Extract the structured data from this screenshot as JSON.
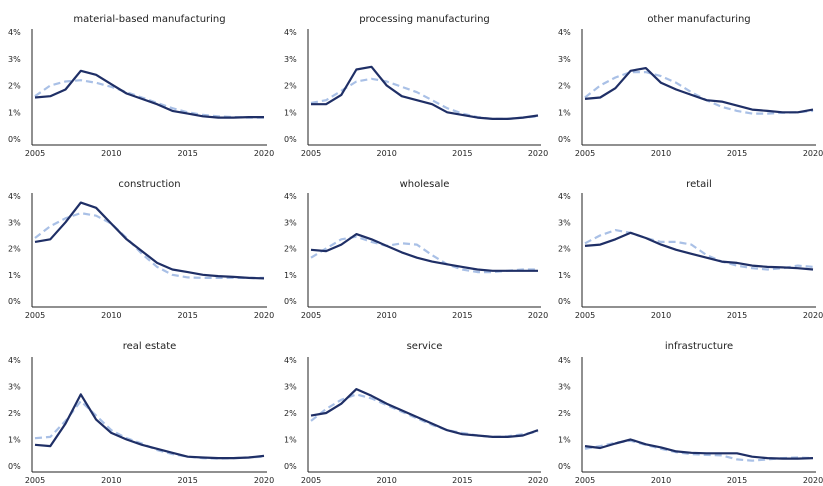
{
  "chart_data": [
    {
      "type": "line",
      "title": "material-based manufacturing",
      "x": [
        2005,
        2006,
        2007,
        2008,
        2009,
        2010,
        2011,
        2012,
        2013,
        2014,
        2015,
        2016,
        2017,
        2018,
        2019,
        2020
      ],
      "xticks": [
        "2005",
        "2010",
        "2015",
        "2020"
      ],
      "yticks": [
        "0%",
        "1%",
        "2%",
        "3%",
        "4%"
      ],
      "ylim": [
        0,
        4
      ],
      "series": [
        {
          "style": "solid",
          "color": "#1f2f66",
          "values": [
            1.55,
            1.6,
            1.85,
            2.55,
            2.4,
            2.05,
            1.7,
            1.5,
            1.3,
            1.05,
            0.95,
            0.85,
            0.8,
            0.8,
            0.82,
            0.82
          ]
        },
        {
          "style": "dashed",
          "color": "#a9c0e6",
          "values": [
            1.6,
            2.0,
            2.15,
            2.2,
            2.1,
            1.95,
            1.75,
            1.55,
            1.35,
            1.15,
            1.0,
            0.9,
            0.85,
            0.82,
            0.8,
            0.8
          ]
        }
      ]
    },
    {
      "type": "line",
      "title": "processing manufacturing",
      "x": [
        2005,
        2006,
        2007,
        2008,
        2009,
        2010,
        2011,
        2012,
        2013,
        2014,
        2015,
        2016,
        2017,
        2018,
        2019,
        2020
      ],
      "xticks": [
        "2005",
        "2010",
        "2015",
        "2020"
      ],
      "yticks": [
        "0%",
        "1%",
        "2%",
        "3%",
        "4%"
      ],
      "ylim": [
        0,
        4
      ],
      "series": [
        {
          "style": "solid",
          "color": "#1f2f66",
          "values": [
            1.3,
            1.3,
            1.65,
            2.6,
            2.7,
            2.0,
            1.6,
            1.45,
            1.3,
            1.0,
            0.9,
            0.8,
            0.75,
            0.75,
            0.8,
            0.88
          ]
        },
        {
          "style": "dashed",
          "color": "#a9c0e6",
          "values": [
            1.35,
            1.45,
            1.8,
            2.15,
            2.25,
            2.15,
            1.95,
            1.75,
            1.45,
            1.15,
            0.95,
            0.82,
            0.75,
            0.75,
            0.8,
            0.85
          ]
        }
      ]
    },
    {
      "type": "line",
      "title": "other manufacturing",
      "x": [
        2005,
        2006,
        2007,
        2008,
        2009,
        2010,
        2011,
        2012,
        2013,
        2014,
        2015,
        2016,
        2017,
        2018,
        2019,
        2020
      ],
      "xticks": [
        "2005",
        "2010",
        "2015",
        "2020"
      ],
      "yticks": [
        "0%",
        "1%",
        "2%",
        "3%",
        "4%"
      ],
      "ylim": [
        0,
        4
      ],
      "series": [
        {
          "style": "solid",
          "color": "#1f2f66",
          "values": [
            1.5,
            1.55,
            1.9,
            2.55,
            2.65,
            2.1,
            1.85,
            1.65,
            1.45,
            1.4,
            1.25,
            1.1,
            1.05,
            1.0,
            1.0,
            1.1
          ]
        },
        {
          "style": "dashed",
          "color": "#a9c0e6",
          "values": [
            1.55,
            2.0,
            2.3,
            2.5,
            2.5,
            2.35,
            2.1,
            1.75,
            1.45,
            1.2,
            1.05,
            0.95,
            0.95,
            0.98,
            1.0,
            1.05
          ]
        }
      ]
    },
    {
      "type": "line",
      "title": "construction",
      "x": [
        2005,
        2006,
        2007,
        2008,
        2009,
        2010,
        2011,
        2012,
        2013,
        2014,
        2015,
        2016,
        2017,
        2018,
        2019,
        2020
      ],
      "xticks": [
        "2005",
        "2010",
        "2015",
        "2020"
      ],
      "yticks": [
        "0%",
        "1%",
        "2%",
        "3%",
        "4%"
      ],
      "ylim": [
        0,
        4
      ],
      "series": [
        {
          "style": "solid",
          "color": "#1f2f66",
          "values": [
            2.25,
            2.35,
            3.0,
            3.75,
            3.55,
            2.95,
            2.35,
            1.9,
            1.45,
            1.2,
            1.1,
            1.0,
            0.95,
            0.92,
            0.88,
            0.86
          ]
        },
        {
          "style": "dashed",
          "color": "#a9c0e6",
          "values": [
            2.4,
            2.85,
            3.15,
            3.35,
            3.25,
            2.95,
            2.4,
            1.8,
            1.3,
            1.0,
            0.9,
            0.88,
            0.88,
            0.88,
            0.88,
            0.88
          ]
        }
      ]
    },
    {
      "type": "line",
      "title": "wholesale",
      "x": [
        2005,
        2006,
        2007,
        2008,
        2009,
        2010,
        2011,
        2012,
        2013,
        2014,
        2015,
        2016,
        2017,
        2018,
        2019,
        2020
      ],
      "xticks": [
        "2005",
        "2010",
        "2015",
        "2020"
      ],
      "yticks": [
        "0%",
        "1%",
        "2%",
        "3%",
        "4%"
      ],
      "ylim": [
        0,
        4
      ],
      "series": [
        {
          "style": "solid",
          "color": "#1f2f66",
          "values": [
            1.95,
            1.9,
            2.15,
            2.55,
            2.35,
            2.1,
            1.85,
            1.65,
            1.5,
            1.4,
            1.3,
            1.2,
            1.15,
            1.15,
            1.15,
            1.15
          ]
        },
        {
          "style": "dashed",
          "color": "#a9c0e6",
          "values": [
            1.65,
            2.0,
            2.35,
            2.45,
            2.25,
            2.1,
            2.2,
            2.15,
            1.75,
            1.4,
            1.2,
            1.1,
            1.1,
            1.15,
            1.2,
            1.2
          ]
        }
      ]
    },
    {
      "type": "line",
      "title": "retail",
      "x": [
        2005,
        2006,
        2007,
        2008,
        2009,
        2010,
        2011,
        2012,
        2013,
        2014,
        2015,
        2016,
        2017,
        2018,
        2019,
        2020
      ],
      "xticks": [
        "2005",
        "2010",
        "2015",
        "2020"
      ],
      "yticks": [
        "0%",
        "1%",
        "2%",
        "3%",
        "4%"
      ],
      "ylim": [
        0,
        4
      ],
      "series": [
        {
          "style": "solid",
          "color": "#1f2f66",
          "values": [
            2.1,
            2.15,
            2.35,
            2.6,
            2.4,
            2.15,
            1.95,
            1.8,
            1.65,
            1.5,
            1.45,
            1.35,
            1.3,
            1.28,
            1.25,
            1.2
          ]
        },
        {
          "style": "dashed",
          "color": "#a9c0e6",
          "values": [
            2.2,
            2.5,
            2.7,
            2.6,
            2.4,
            2.25,
            2.25,
            2.15,
            1.75,
            1.5,
            1.35,
            1.25,
            1.2,
            1.25,
            1.35,
            1.3
          ]
        }
      ]
    },
    {
      "type": "line",
      "title": "real estate",
      "x": [
        2005,
        2006,
        2007,
        2008,
        2009,
        2010,
        2011,
        2012,
        2013,
        2014,
        2015,
        2016,
        2017,
        2018,
        2019,
        2020
      ],
      "xticks": [
        "2005",
        "2010",
        "2015",
        "2020"
      ],
      "yticks": [
        "0%",
        "1%",
        "2%",
        "3%",
        "4%"
      ],
      "ylim": [
        0,
        4
      ],
      "series": [
        {
          "style": "solid",
          "color": "#1f2f66",
          "values": [
            0.8,
            0.75,
            1.6,
            2.7,
            1.75,
            1.25,
            1.0,
            0.8,
            0.65,
            0.5,
            0.35,
            0.32,
            0.3,
            0.3,
            0.32,
            0.38
          ]
        },
        {
          "style": "dashed",
          "color": "#a9c0e6",
          "values": [
            1.05,
            1.1,
            1.7,
            2.45,
            1.9,
            1.35,
            1.05,
            0.85,
            0.6,
            0.45,
            0.35,
            0.3,
            0.28,
            0.3,
            0.32,
            0.35
          ]
        }
      ]
    },
    {
      "type": "line",
      "title": "service",
      "x": [
        2005,
        2006,
        2007,
        2008,
        2009,
        2010,
        2011,
        2012,
        2013,
        2014,
        2015,
        2016,
        2017,
        2018,
        2019,
        2020
      ],
      "xticks": [
        "2005",
        "2010",
        "2015",
        "2020"
      ],
      "yticks": [
        "0%",
        "1%",
        "2%",
        "3%",
        "4%"
      ],
      "ylim": [
        0,
        4
      ],
      "series": [
        {
          "style": "solid",
          "color": "#1f2f66",
          "values": [
            1.9,
            2.0,
            2.35,
            2.9,
            2.65,
            2.35,
            2.1,
            1.85,
            1.6,
            1.35,
            1.2,
            1.15,
            1.1,
            1.1,
            1.15,
            1.35
          ]
        },
        {
          "style": "dashed",
          "color": "#a9c0e6",
          "values": [
            1.7,
            2.15,
            2.5,
            2.7,
            2.55,
            2.3,
            2.05,
            1.8,
            1.55,
            1.35,
            1.25,
            1.15,
            1.1,
            1.12,
            1.2,
            1.3
          ]
        }
      ]
    },
    {
      "type": "line",
      "title": "infrastructure",
      "x": [
        2005,
        2006,
        2007,
        2008,
        2009,
        2010,
        2011,
        2012,
        2013,
        2014,
        2015,
        2016,
        2017,
        2018,
        2019,
        2020
      ],
      "xticks": [
        "2005",
        "2010",
        "2015",
        "2020"
      ],
      "yticks": [
        "0%",
        "1%",
        "2%",
        "3%",
        "4%"
      ],
      "ylim": [
        0,
        4
      ],
      "series": [
        {
          "style": "solid",
          "color": "#1f2f66",
          "values": [
            0.75,
            0.68,
            0.85,
            1.0,
            0.82,
            0.7,
            0.55,
            0.5,
            0.48,
            0.48,
            0.48,
            0.35,
            0.3,
            0.28,
            0.28,
            0.3
          ]
        },
        {
          "style": "dashed",
          "color": "#a9c0e6",
          "values": [
            0.65,
            0.75,
            0.88,
            0.95,
            0.8,
            0.65,
            0.52,
            0.45,
            0.42,
            0.4,
            0.25,
            0.2,
            0.25,
            0.3,
            0.32,
            0.3
          ]
        }
      ]
    }
  ]
}
